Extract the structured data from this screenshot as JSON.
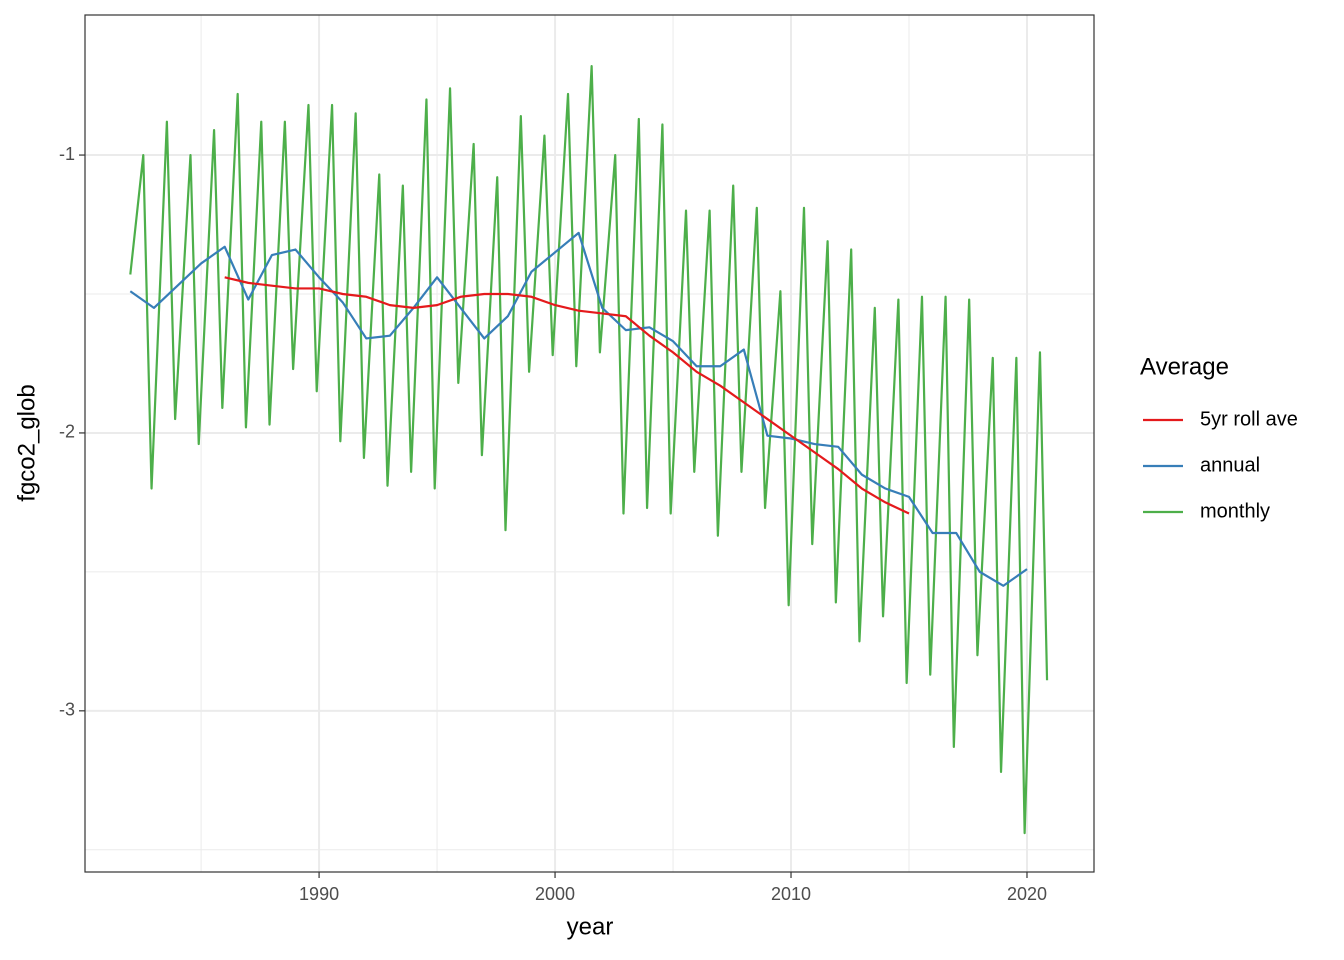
{
  "chart_data": {
    "type": "line",
    "xlabel": "year",
    "ylabel": "fgco2_glob",
    "xlim": [
      1980.08,
      2022.84
    ],
    "xticks": [
      1990,
      2000,
      2010,
      2020
    ],
    "xminor": [
      1985,
      1995,
      2005,
      2015
    ],
    "ylim": [
      -3.58,
      -0.496
    ],
    "yticks": [
      -1,
      -2,
      -3
    ],
    "yminor": [
      -1.5,
      -2.5,
      -3.5
    ],
    "grid": true,
    "legend_title": "Average",
    "legend": "right",
    "series": [
      {
        "name": "5yr roll ave",
        "color": "#e41a1c",
        "x": [
          1986,
          1987,
          1988,
          1989,
          1990,
          1991,
          1992,
          1993,
          1994,
          1995,
          1996,
          1997,
          1998,
          1999,
          2000,
          2001,
          2002,
          2003,
          2004,
          2005,
          2006,
          2007,
          2008,
          2009,
          2010,
          2011,
          2012,
          2013,
          2014,
          2015
        ],
        "values": [
          -1.44,
          -1.46,
          -1.47,
          -1.48,
          -1.48,
          -1.5,
          -1.51,
          -1.54,
          -1.55,
          -1.54,
          -1.51,
          -1.5,
          -1.5,
          -1.51,
          -1.54,
          -1.56,
          -1.57,
          -1.58,
          -1.65,
          -1.71,
          -1.78,
          -1.83,
          -1.89,
          -1.95,
          -2.01,
          -2.07,
          -2.13,
          -2.2,
          -2.25,
          -2.29
        ]
      },
      {
        "name": "annual",
        "color": "#377eb8",
        "x": [
          1982,
          1983,
          1984,
          1985,
          1986,
          1987,
          1988,
          1989,
          1990,
          1991,
          1992,
          1993,
          1994,
          1995,
          1996,
          1997,
          1998,
          1999,
          2000,
          2001,
          2002,
          2003,
          2004,
          2005,
          2006,
          2007,
          2008,
          2009,
          2010,
          2011,
          2012,
          2013,
          2014,
          2015,
          2016,
          2017,
          2018,
          2019,
          2020
        ],
        "values": [
          -1.49,
          -1.55,
          -1.47,
          -1.39,
          -1.33,
          -1.52,
          -1.36,
          -1.34,
          -1.44,
          -1.53,
          -1.66,
          -1.65,
          -1.55,
          -1.44,
          -1.55,
          -1.66,
          -1.58,
          -1.42,
          -1.35,
          -1.28,
          -1.55,
          -1.63,
          -1.62,
          -1.67,
          -1.76,
          -1.76,
          -1.7,
          -2.01,
          -2.02,
          -2.04,
          -2.05,
          -2.15,
          -2.2,
          -2.23,
          -2.36,
          -2.36,
          -2.5,
          -2.55,
          -2.49
        ]
      },
      {
        "name": "monthly",
        "color": "#4daf4a",
        "x": [
          1982.0,
          1982.55,
          1982.9,
          1983.55,
          1983.9,
          1984.55,
          1984.9,
          1985.55,
          1985.9,
          1986.55,
          1986.9,
          1987.55,
          1987.9,
          1988.55,
          1988.9,
          1989.55,
          1989.9,
          1990.55,
          1990.9,
          1991.55,
          1991.9,
          1992.55,
          1992.9,
          1993.55,
          1993.9,
          1994.55,
          1994.9,
          1995.55,
          1995.9,
          1996.55,
          1996.9,
          1997.55,
          1997.9,
          1998.55,
          1998.9,
          1999.55,
          1999.9,
          2000.55,
          2000.9,
          2001.55,
          2001.9,
          2002.55,
          2002.9,
          2003.55,
          2003.9,
          2004.55,
          2004.9,
          2005.55,
          2005.9,
          2006.55,
          2006.9,
          2007.55,
          2007.9,
          2008.55,
          2008.9,
          2009.55,
          2009.9,
          2010.55,
          2010.9,
          2011.55,
          2011.9,
          2012.55,
          2012.9,
          2013.55,
          2013.9,
          2014.55,
          2014.9,
          2015.55,
          2015.9,
          2016.55,
          2016.9,
          2017.55,
          2017.9,
          2018.55,
          2018.9,
          2019.55,
          2019.9,
          2020.55,
          2020.85
        ],
        "values": [
          -1.43,
          -1.0,
          -2.2,
          -0.88,
          -1.95,
          -1.0,
          -2.04,
          -0.91,
          -1.91,
          -0.78,
          -1.98,
          -0.88,
          -1.97,
          -0.88,
          -1.77,
          -0.82,
          -1.85,
          -0.82,
          -2.03,
          -0.85,
          -2.09,
          -1.07,
          -2.19,
          -1.11,
          -2.14,
          -0.8,
          -2.2,
          -0.76,
          -1.82,
          -0.96,
          -2.08,
          -1.08,
          -2.35,
          -0.86,
          -1.78,
          -0.93,
          -1.72,
          -0.78,
          -1.76,
          -0.68,
          -1.71,
          -1.0,
          -2.29,
          -0.87,
          -2.27,
          -0.89,
          -2.29,
          -1.2,
          -2.14,
          -1.2,
          -2.37,
          -1.11,
          -2.14,
          -1.19,
          -2.27,
          -1.49,
          -2.62,
          -1.19,
          -2.4,
          -1.31,
          -2.61,
          -1.34,
          -2.75,
          -1.55,
          -2.66,
          -1.52,
          -2.9,
          -1.51,
          -2.87,
          -1.51,
          -3.13,
          -1.52,
          -2.8,
          -1.73,
          -3.22,
          -1.73,
          -3.44,
          -1.71,
          -2.89
        ]
      }
    ]
  }
}
